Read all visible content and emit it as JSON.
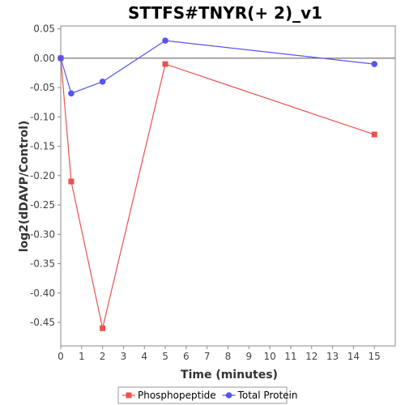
{
  "chart_data": {
    "type": "line",
    "title": "STTFS#TNYR(+ 2)_v1",
    "xlabel": "Time (minutes)",
    "ylabel": "log2(dDAVP/Control)",
    "xlim": [
      0,
      16
    ],
    "ylim": [
      -0.49,
      0.055
    ],
    "xticks": [
      0,
      1,
      2,
      3,
      4,
      5,
      6,
      7,
      8,
      9,
      10,
      11,
      12,
      13,
      14,
      15
    ],
    "yticks": [
      0.05,
      0.0,
      -0.05,
      -0.1,
      -0.15,
      -0.2,
      -0.25,
      -0.3,
      -0.35,
      -0.4,
      -0.45
    ],
    "ytick_labels": [
      "0.05",
      "0.00",
      "-0.05",
      "-0.10",
      "-0.15",
      "-0.20",
      "-0.25",
      "-0.30",
      "-0.35",
      "-0.40",
      "-0.45"
    ],
    "zero_line": true,
    "grid": false,
    "legend_position": "bottom",
    "series": [
      {
        "name": "Phosphopeptide",
        "color": "#e8534f",
        "marker": "square",
        "x": [
          0,
          0.5,
          2,
          5,
          15
        ],
        "y": [
          0.0,
          -0.21,
          -0.46,
          -0.01,
          -0.13
        ]
      },
      {
        "name": "Total Protein",
        "color": "#5555ee",
        "marker": "circle",
        "x": [
          0,
          0.5,
          2,
          5,
          15
        ],
        "y": [
          0.0,
          -0.06,
          -0.04,
          0.03,
          -0.01
        ]
      }
    ]
  }
}
